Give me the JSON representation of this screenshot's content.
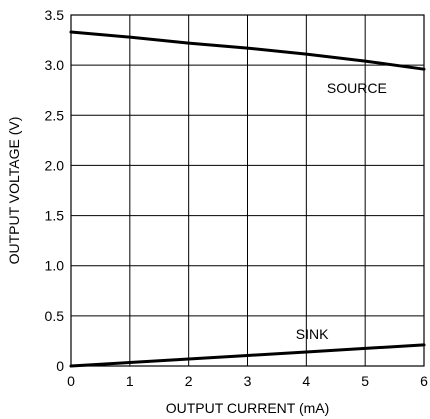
{
  "chart_data": {
    "type": "line",
    "xlabel": "OUTPUT CURRENT (mA)",
    "ylabel": "OUTPUT VOLTAGE (V)",
    "xlim": [
      0,
      6
    ],
    "ylim": [
      0,
      3.5
    ],
    "xticks": [
      0,
      1,
      2,
      3,
      4,
      5,
      6
    ],
    "xtick_labels": [
      "0",
      "1",
      "2",
      "3",
      "4",
      "5",
      "6"
    ],
    "yticks": [
      0,
      0.5,
      1.0,
      1.5,
      2.0,
      2.5,
      3.0,
      3.5
    ],
    "ytick_labels": [
      "0",
      "0.5",
      "1.0",
      "1.5",
      "2.0",
      "2.5",
      "3.0",
      "3.5"
    ],
    "grid": true,
    "series": [
      {
        "name": "SOURCE",
        "x": [
          0,
          1,
          2,
          3,
          4,
          5,
          6
        ],
        "y": [
          3.33,
          3.28,
          3.22,
          3.17,
          3.11,
          3.04,
          2.96
        ]
      },
      {
        "name": "SINK",
        "x": [
          0,
          1,
          2,
          3,
          4,
          5,
          6
        ],
        "y": [
          0.0,
          0.035,
          0.07,
          0.105,
          0.14,
          0.175,
          0.21
        ]
      }
    ],
    "colors": {
      "line": "#000000",
      "grid": "#000000",
      "background": "#ffffff"
    }
  }
}
